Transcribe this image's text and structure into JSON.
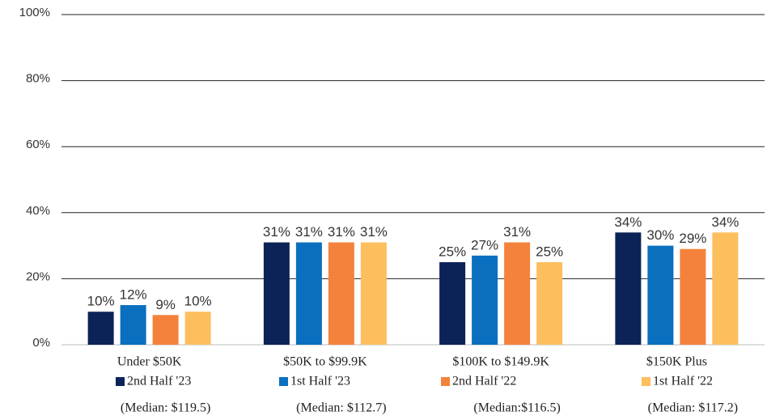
{
  "chart_data": {
    "type": "bar",
    "categories": [
      "Under $50K",
      "$50K to $99.9K",
      "$100K to $149.9K",
      "$150K Plus"
    ],
    "series": [
      {
        "name": "2nd Half '23",
        "color": "#0c2357",
        "values": [
          10,
          31,
          25,
          34
        ],
        "value_labels": [
          "10%",
          "31%",
          "25%",
          "34%"
        ]
      },
      {
        "name": "1st Half '23",
        "color": "#0a6fbf",
        "values": [
          12,
          31,
          27,
          30
        ],
        "value_labels": [
          "12%",
          "31%",
          "27%",
          "30%"
        ]
      },
      {
        "name": "2nd Half '22",
        "color": "#f4823c",
        "values": [
          9,
          31,
          31,
          29
        ],
        "value_labels": [
          "9%",
          "31%",
          "31%",
          "29%"
        ]
      },
      {
        "name": "1st Half '22",
        "color": "#fdbe5e",
        "values": [
          10,
          31,
          25,
          34
        ],
        "value_labels": [
          "10%",
          "31%",
          "25%",
          "34%"
        ]
      }
    ],
    "annotations": [
      "(Median: $119.5)",
      "(Median: $112.7)",
      "(Median:$116.5)",
      "(Median: $117.2)"
    ],
    "ylim": [
      0,
      100
    ],
    "yticks": [
      {
        "value": 0,
        "label": "0%"
      },
      {
        "value": 20,
        "label": "20%"
      },
      {
        "value": 40,
        "label": "40%"
      },
      {
        "value": 60,
        "label": "60%"
      },
      {
        "value": 80,
        "label": "80%"
      },
      {
        "value": 100,
        "label": "100%"
      }
    ],
    "grid": true
  }
}
